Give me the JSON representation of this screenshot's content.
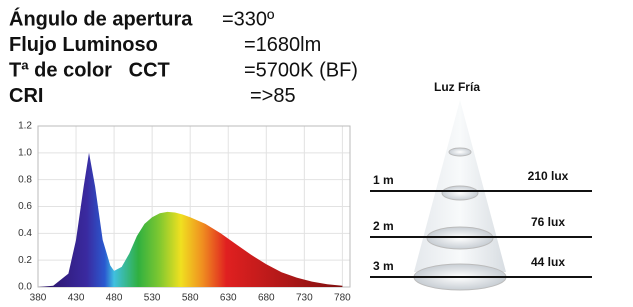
{
  "specs": [
    {
      "label": "Ángulo de apertura",
      "value": "=330º"
    },
    {
      "label": "Flujo Luminoso",
      "value": "=1680lm"
    },
    {
      "label": "Tª de color   CCT",
      "value": "=5700K (BF)"
    },
    {
      "label": "CRI",
      "value": "=>85"
    }
  ],
  "chart_data": {
    "type": "area",
    "x": [
      380,
      400,
      420,
      430,
      440,
      447,
      455,
      465,
      475,
      480,
      490,
      500,
      510,
      520,
      530,
      540,
      550,
      560,
      570,
      580,
      600,
      620,
      640,
      660,
      680,
      700,
      720,
      740,
      760,
      780
    ],
    "values": [
      0.0,
      0.01,
      0.1,
      0.35,
      0.75,
      1.0,
      0.75,
      0.35,
      0.16,
      0.12,
      0.15,
      0.25,
      0.38,
      0.47,
      0.52,
      0.55,
      0.56,
      0.555,
      0.54,
      0.52,
      0.47,
      0.4,
      0.32,
      0.24,
      0.17,
      0.11,
      0.07,
      0.04,
      0.02,
      0.01
    ],
    "xlim": [
      380,
      790
    ],
    "ylim": [
      0,
      1.2
    ],
    "xticks": [
      380,
      430,
      480,
      530,
      580,
      630,
      680,
      730,
      780
    ],
    "yticks": [
      {
        "value": 0,
        "label": "0.0"
      },
      0.2,
      0.4,
      0.6,
      0.8,
      {
        "value": 1,
        "label": "1.0"
      },
      1.2
    ],
    "grid": true
  },
  "illumination": {
    "title": "Luz Fría",
    "rows": [
      {
        "distance": "1 m",
        "lux": "210 lux"
      },
      {
        "distance": "2 m",
        "lux": "76 lux"
      },
      {
        "distance": "3 m",
        "lux": "44 lux"
      }
    ]
  }
}
